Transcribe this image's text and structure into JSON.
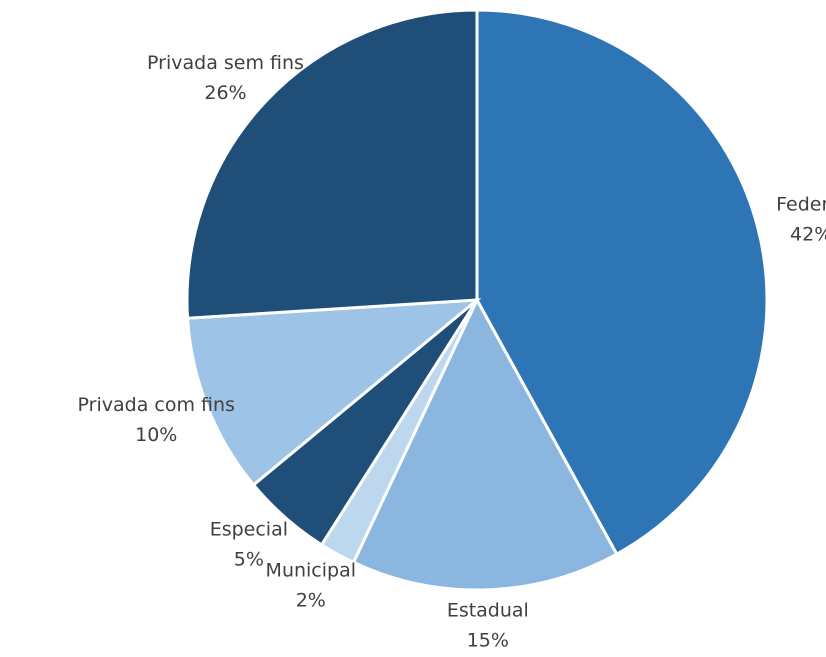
{
  "chart_data": {
    "type": "pie",
    "categories": [
      "Federal",
      "Estadual",
      "Municipal",
      "Especial",
      "Privada com fins",
      "Privada sem fins"
    ],
    "values": [
      42,
      15,
      2,
      5,
      10,
      26
    ],
    "value_labels": [
      "42%",
      "15%",
      "2%",
      "5%",
      "10%",
      "26%"
    ],
    "colors": [
      "#2e75b6",
      "#8ab6e0",
      "#bdd7ee",
      "#1f4e79",
      "#9dc3e6",
      "#1f4e79"
    ]
  }
}
